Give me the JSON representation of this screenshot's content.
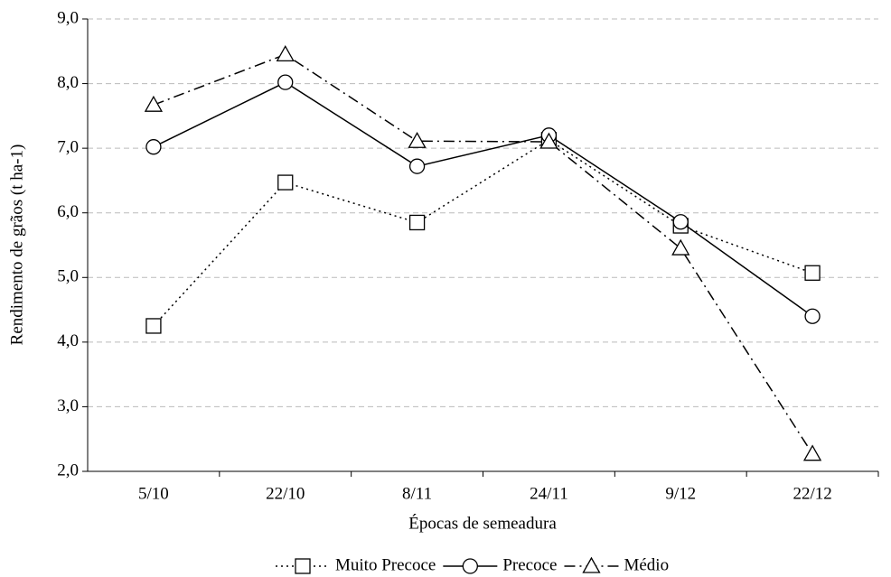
{
  "chart_data": {
    "type": "line",
    "x_label": "Épocas de semeadura",
    "y_label": "Rendimento de grãos (t ha-1)",
    "categories": [
      "5/10",
      "22/10",
      "8/11",
      "24/11",
      "9/12",
      "22/12"
    ],
    "series": [
      {
        "name": "Muito Precoce",
        "color": "#000000",
        "linestyle": "dotted",
        "marker": "square",
        "values": [
          4.25,
          6.47,
          5.85,
          7.13,
          5.8,
          5.07
        ]
      },
      {
        "name": "Precoce",
        "color": "#000000",
        "linestyle": "solid",
        "marker": "circle",
        "values": [
          7.02,
          8.02,
          6.72,
          7.2,
          5.86,
          4.4
        ]
      },
      {
        "name": "Médio",
        "color": "#000000",
        "linestyle": "dashdot",
        "marker": "triangle",
        "values": [
          7.67,
          8.45,
          7.11,
          7.1,
          5.45,
          2.27
        ]
      }
    ],
    "ylim": [
      2,
      9
    ],
    "yticks": [
      {
        "value": 2,
        "label": "2,0"
      },
      {
        "value": 3,
        "label": "3,0"
      },
      {
        "value": 4,
        "label": "4,0"
      },
      {
        "value": 5,
        "label": "5,0"
      },
      {
        "value": 6,
        "label": "6,0"
      },
      {
        "value": 7,
        "label": "7,0"
      },
      {
        "value": 8,
        "label": "8,0"
      },
      {
        "value": 9,
        "label": "9,0"
      }
    ],
    "grid": true,
    "legend": "bottom"
  }
}
